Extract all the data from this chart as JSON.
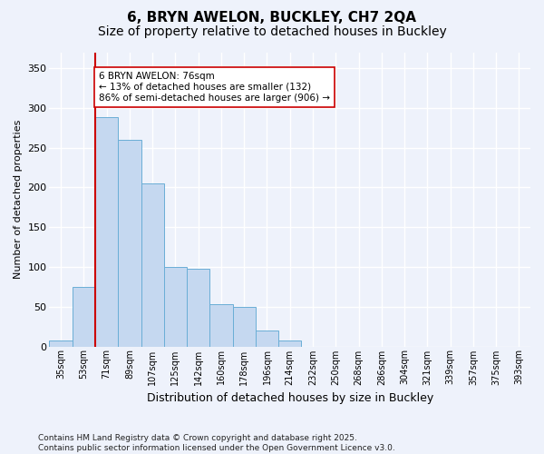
{
  "title1": "6, BRYN AWELON, BUCKLEY, CH7 2QA",
  "title2": "Size of property relative to detached houses in Buckley",
  "xlabel": "Distribution of detached houses by size in Buckley",
  "ylabel": "Number of detached properties",
  "categories": [
    "35sqm",
    "53sqm",
    "71sqm",
    "89sqm",
    "107sqm",
    "125sqm",
    "142sqm",
    "160sqm",
    "178sqm",
    "196sqm",
    "214sqm",
    "232sqm",
    "250sqm",
    "268sqm",
    "286sqm",
    "304sqm",
    "321sqm",
    "339sqm",
    "357sqm",
    "375sqm",
    "393sqm"
  ],
  "values": [
    7,
    75,
    288,
    260,
    205,
    100,
    98,
    53,
    50,
    20,
    7,
    0,
    0,
    0,
    0,
    0,
    0,
    0,
    0,
    0,
    0
  ],
  "bar_color": "#c5d8f0",
  "bar_edge_color": "#6aaed6",
  "vline_color": "#cc0000",
  "vline_pos": 1.5,
  "annotation_text": "6 BRYN AWELON: 76sqm\n← 13% of detached houses are smaller (132)\n86% of semi-detached houses are larger (906) →",
  "annotation_box_color": "#ffffff",
  "annotation_box_edge": "#cc0000",
  "ylim": [
    0,
    370
  ],
  "yticks": [
    0,
    50,
    100,
    150,
    200,
    250,
    300,
    350
  ],
  "footer": "Contains HM Land Registry data © Crown copyright and database right 2025.\nContains public sector information licensed under the Open Government Licence v3.0.",
  "bg_color": "#eef2fb",
  "grid_color": "#ffffff",
  "title_fontsize": 11,
  "subtitle_fontsize": 10,
  "ann_fontsize": 7.5,
  "ylabel_fontsize": 8,
  "xlabel_fontsize": 9,
  "footer_fontsize": 6.5
}
